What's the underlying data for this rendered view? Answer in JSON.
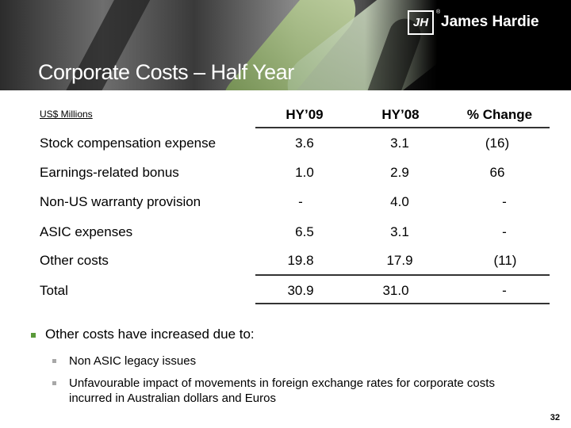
{
  "brand": {
    "name": "James Hardie",
    "logo_letters": "JH",
    "reg_mark": "®"
  },
  "title": "Corporate Costs – Half Year",
  "table": {
    "units": "US$ Millions",
    "headers": [
      "HY’09",
      "HY’08",
      "% Change"
    ],
    "rows": [
      {
        "label": "Stock compensation expense",
        "hy09": "3.6",
        "hy08": "3.1",
        "change": "(16)"
      },
      {
        "label": "Earnings-related bonus",
        "hy09": "1.0",
        "hy08": "2.9",
        "change": "66"
      },
      {
        "label": "Non-US warranty provision",
        "hy09": "-",
        "hy08": "4.0",
        "change": "-"
      },
      {
        "label": "ASIC expenses",
        "hy09": "6.5",
        "hy08": "3.1",
        "change": "-"
      },
      {
        "label": "Other costs",
        "hy09": "19.8",
        "hy08": "17.9",
        "change": "(11)"
      },
      {
        "label": "Total",
        "hy09": "30.9",
        "hy08": "31.0",
        "change": "-"
      }
    ]
  },
  "bullets": {
    "main": "Other costs have increased due to:",
    "sub": [
      "Non ASIC legacy issues",
      "Unfavourable impact of movements in foreign exchange rates for corporate costs incurred in Australian dollars and Euros"
    ]
  },
  "page_number": "32",
  "colors": {
    "bullet_green": "#5a9a3a",
    "sub_bullet_grey": "#a8a8a8",
    "rule": "#333333"
  }
}
